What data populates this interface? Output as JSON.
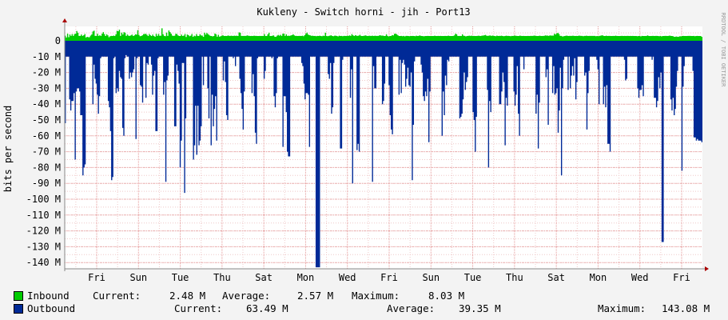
{
  "chart_data": {
    "type": "area",
    "title": "Kukleny - Switch horni - jih - Port13",
    "ylabel": "bits per second",
    "watermark": "RRDTOOL / TOBI OETIKER",
    "ylim": [
      -143080000,
      8030000
    ],
    "y_ticks": [
      {
        "value": 0,
        "label": "0"
      },
      {
        "value": -10000000,
        "label": "-10 M"
      },
      {
        "value": -20000000,
        "label": "-20 M"
      },
      {
        "value": -30000000,
        "label": "-30 M"
      },
      {
        "value": -40000000,
        "label": "-40 M"
      },
      {
        "value": -50000000,
        "label": "-50 M"
      },
      {
        "value": -60000000,
        "label": "-60 M"
      },
      {
        "value": -70000000,
        "label": "-70 M"
      },
      {
        "value": -80000000,
        "label": "-80 M"
      },
      {
        "value": -90000000,
        "label": "-90 M"
      },
      {
        "value": -100000000,
        "label": "-100 M"
      },
      {
        "value": -110000000,
        "label": "-110 M"
      },
      {
        "value": -120000000,
        "label": "-120 M"
      },
      {
        "value": -130000000,
        "label": "-130 M"
      },
      {
        "value": -140000000,
        "label": "-140 M"
      }
    ],
    "x_ticks": [
      "Fri",
      "Sun",
      "Tue",
      "Thu",
      "Sat",
      "Mon",
      "Wed",
      "Fri",
      "Sun",
      "Tue",
      "Thu",
      "Sat",
      "Mon",
      "Wed",
      "Fri"
    ],
    "series": [
      {
        "name": "Inbound",
        "color": "#00cc00",
        "values": [
          3.2,
          2.1,
          4.5,
          2.3,
          4.0,
          3.1,
          4.2,
          3.1,
          4.2,
          4.5,
          6.2,
          5.1,
          3.1,
          3.1,
          4.0,
          3.1,
          3.5,
          4.3,
          2.1,
          2.5,
          2.3,
          2.3,
          3.3,
          4.0,
          5.9,
          6.4,
          3.1,
          3.1,
          4.4,
          3.1,
          3.5,
          3.1,
          4.5,
          5.5,
          4.2,
          3.0,
          4.1,
          3.4,
          2.3,
          2.9,
          3.1,
          3.0,
          3.3,
          3.0,
          4.1,
          6.3,
          6.0,
          7.0,
          3.1,
          5.2,
          4.0,
          5.4,
          5.1,
          3.1,
          4.0,
          3.2,
          3.1,
          3.4,
          3.9,
          3.0,
          3.4,
          4.1,
          3.9,
          6.7,
          3.7,
          2.9,
          3.0,
          3.5,
          4.2,
          4.3,
          4.4,
          3.8,
          3.0,
          4.3,
          3.5,
          3.0,
          3.9,
          3.0,
          2.6,
          4.4,
          3.1,
          4.3,
          3.2,
          3.2,
          7.9,
          4.1,
          3.1,
          2.9,
          5.2,
          3.1,
          6.5,
          5.5,
          4.5,
          3.3,
          3.1,
          3.2,
          4.4,
          4.3,
          3.4,
          3.0,
          3.0,
          3.9,
          3.0,
          3.3,
          4.3,
          2.4,
          4.0,
          3.6,
          2.9,
          3.2,
          4.3,
          2.5,
          3.2,
          2.9,
          4.2,
          3.1,
          3.0,
          4.1,
          3.4,
          3.3,
          2.5,
          5.1,
          3.9,
          5.0,
          4.2,
          3.7,
          3.1,
          3.0,
          2.8,
          3.0,
          4.6,
          4.1,
          2.6,
          3.8,
          2.6,
          2.9,
          3.2,
          3.5,
          3.0,
          3.1,
          3.0,
          3.2,
          3.3,
          3.0,
          3.2,
          3.1,
          3.1,
          3.2,
          3.1,
          3.2,
          3.0,
          5.3,
          5.1,
          3.1,
          3.1,
          3.1,
          3.1,
          3.1,
          3.4,
          3.2,
          3.1,
          3.0,
          3.1,
          3.0,
          3.2,
          3.1,
          3.1,
          3.0,
          3.0,
          3.1,
          3.0,
          3.1,
          3.0,
          4.2,
          3.0,
          3.0,
          4.1,
          5.1,
          3.0,
          3.0,
          3.2,
          3.4,
          2.6,
          2.5,
          3.2,
          3.7,
          3.2,
          3.8,
          3.1,
          4.5,
          4.5,
          3.1,
          4.1,
          3.1,
          3.2,
          3.1,
          3.4,
          3.6,
          4.1,
          3.4,
          3.1,
          3.1,
          3.0,
          3.1,
          3.1,
          3.0,
          3.2,
          2.9,
          3.6,
          4.4,
          5.2,
          4.0,
          3.6,
          3.4,
          3.1,
          3.2,
          3.0,
          3.1,
          2.9,
          3.1,
          3.0,
          3.2,
          3.0,
          2.9,
          3.2,
          3.1,
          5.1,
          3.1,
          2.9,
          3.1,
          3.3,
          3.5,
          3.0,
          2.9,
          3.2,
          3.2,
          3.0,
          2.8,
          3.2,
          3.0,
          3.1,
          2.9,
          3.1,
          3.1,
          3.0,
          3.2,
          3.1,
          3.4,
          3.1,
          4.2,
          3.5,
          3.0,
          3.6,
          3.2,
          3.1,
          3.3,
          3.8,
          3.1,
          3.0,
          3.1,
          3.3,
          3.4,
          3.1,
          3.0,
          3.2,
          3.1,
          3.1,
          3.2,
          3.0,
          3.2,
          3.1,
          3.1,
          3.1,
          3.5,
          3.4,
          3.2,
          3.3,
          3.0,
          3.1,
          4.1,
          3.1,
          2.7,
          3.0,
          3.0,
          3.6,
          3.4,
          4.4,
          4.5,
          4.1,
          3.5,
          3.0,
          3.0,
          3.1,
          2.9,
          3.1,
          2.8,
          3.1,
          3.1,
          3.0,
          2.9,
          3.1,
          3.0,
          3.1,
          3.0,
          2.9,
          3.2,
          3.0,
          3.1,
          3.4,
          3.1,
          3.0,
          2.9,
          2.9,
          3.0,
          3.0,
          3.1,
          3.0,
          3.0,
          3.0,
          3.0,
          3.0,
          3.2,
          3.0,
          3.0,
          3.1,
          3.0,
          3.1,
          3.0,
          3.0,
          3.0,
          3.1,
          3.0,
          3.1,
          3.2,
          3.0,
          3.0,
          3.0,
          3.1,
          3.4,
          4.5,
          4.1,
          3.1,
          3.0,
          3.1,
          3.0,
          4.1,
          3.2,
          3.1,
          2.8,
          3.0,
          3.1,
          3.2,
          3.1,
          3.2,
          3.0,
          3.1,
          3.0,
          3.0,
          3.1,
          3.2,
          3.1,
          3.0,
          3.3,
          3.3,
          3.5,
          3.7,
          3.2,
          3.1,
          3.2,
          3.4,
          3.1,
          3.3,
          3.2,
          3.0,
          2.9,
          3.3,
          3.0,
          3.1,
          3.1,
          3.2,
          3.0,
          2.9,
          3.0,
          3.2,
          3.1,
          3.1,
          3.0,
          2.9,
          3.1,
          3.0,
          3.3,
          3.2,
          3.1,
          3.0,
          3.0,
          3.3,
          3.1,
          3.0,
          3.1,
          3.0,
          3.0,
          3.0,
          3.1,
          3.0,
          3.1,
          3.1,
          3.1,
          3.2,
          3.3,
          3.1,
          3.0,
          3.0,
          3.2,
          3.1,
          3.0,
          3.1,
          3.1,
          3.4,
          3.3,
          3.3,
          3.1,
          3.4,
          3.3,
          3.3,
          3.3,
          4.5,
          4.0,
          4.7,
          5.0,
          4.2,
          3.1,
          3.1,
          2.7,
          2.9,
          3.0,
          3.2,
          3.2,
          3.0,
          3.1,
          3.1,
          3.1,
          3.2,
          3.1,
          3.0,
          3.1,
          3.0,
          3.2,
          3.2,
          3.1,
          3.1,
          2.9,
          3.1,
          3.1,
          3.2,
          3.0,
          3.1,
          3.1,
          3.1,
          3.1,
          3.1,
          3.1,
          2.9,
          3.0,
          2.9,
          3.1,
          3.2,
          3.4,
          3.4,
          3.0,
          3.0,
          3.2,
          3.0,
          3.1,
          3.1,
          3.0,
          3.0,
          3.1,
          3.0,
          3.2,
          3.1,
          3.0,
          3.0,
          3.0,
          3.1,
          3.1,
          3.0,
          3.1,
          3.0,
          3.1,
          3.1,
          3.0,
          3.1,
          3.0,
          3.1,
          3.0,
          3.0,
          3.0,
          2.9,
          3.0,
          3.1,
          2.8,
          3.1,
          3.0,
          3.0,
          3.0,
          3.1,
          3.4,
          3.0,
          3.0,
          3.0,
          3.1,
          3.1,
          3.0,
          3.1,
          3.1,
          3.0,
          2.9,
          3.1,
          2.8,
          3.0,
          3.0,
          3.1,
          3.1,
          3.0,
          3.1,
          3.3,
          3.1,
          3.0,
          2.9,
          2.5,
          2.6,
          2.7,
          2.5,
          2.6,
          2.9,
          2.8,
          3.0,
          3.1,
          3.0,
          3.0,
          3.0,
          3.1,
          3.1,
          3.1,
          3.0,
          3.0,
          3.1,
          2.9,
          3.0,
          3.1,
          3.0,
          3.0,
          3.0,
          2.5
        ]
      },
      {
        "name": "Outbound",
        "color": "#002a97",
        "values": [
          -52,
          -10,
          -10,
          -10,
          -37,
          -44,
          -38,
          -38,
          -33,
          -75,
          -32,
          -30,
          -30,
          -32,
          -47,
          -47,
          -85,
          -80,
          -78,
          -10,
          -10,
          -10,
          -10,
          -10,
          -10,
          -40,
          -15,
          -24,
          -27,
          -34,
          -46,
          -35,
          -11,
          -10,
          -10,
          -10,
          -10,
          -10,
          -10,
          -38,
          -42,
          -57,
          -88,
          -86,
          -11,
          -10,
          -33,
          -30,
          -32,
          -19,
          -23,
          -24,
          -55,
          -60,
          -11,
          -9,
          -10,
          -10,
          -24,
          -20,
          -23,
          -20,
          -18,
          -10,
          -62,
          -11,
          -10,
          -10,
          -28,
          -29,
          -39,
          -10,
          -10,
          -36,
          -14,
          -15,
          -10,
          -10,
          -15,
          -34,
          -22,
          -19,
          -57,
          -57,
          -11,
          -10,
          -10,
          -10,
          -10,
          -34,
          -26,
          -89,
          -25,
          -22,
          -10,
          -10,
          -10,
          -10,
          -10,
          -54,
          -54,
          -15,
          -19,
          -27,
          -80,
          -63,
          -14,
          -14,
          -96,
          -49,
          -10,
          -10,
          -10,
          -10,
          -10,
          -10,
          -75,
          -66,
          -41,
          -72,
          -41,
          -66,
          -63,
          -54,
          -10,
          -28,
          -10,
          -10,
          -10,
          -30,
          -49,
          -10,
          -66,
          -34,
          -54,
          -43,
          -35,
          -63,
          -10,
          -10,
          -10,
          -10,
          -10,
          -25,
          -13,
          -26,
          -47,
          -50,
          -10,
          -10,
          -10,
          -10,
          -11,
          -10,
          -16,
          -10,
          -10,
          -10,
          -24,
          -33,
          -43,
          -56,
          -32,
          -10,
          -10,
          -10,
          -10,
          -10,
          -10,
          -33,
          -21,
          -35,
          -58,
          -65,
          -11,
          -10,
          -10,
          -10,
          -10,
          -10,
          -24,
          -19,
          -10,
          -10,
          -10,
          -10,
          -10,
          -11,
          -10,
          -35,
          -42,
          -33,
          -11,
          -10,
          -10,
          -10,
          -10,
          -67,
          -35,
          -35,
          -45,
          -70,
          -73,
          -73,
          -10,
          -10,
          -10,
          -10,
          -10,
          -10,
          -10,
          -10,
          -10,
          -10,
          -14,
          -16,
          -27,
          -37,
          -33,
          -33,
          -34,
          -67,
          -10,
          -10,
          -10,
          -10,
          -10,
          -143,
          -143,
          -143,
          -143,
          -10,
          -10,
          -10,
          -10,
          -10,
          -10,
          -10,
          -21,
          -24,
          -14,
          -46,
          -42,
          -14,
          -10,
          -10,
          -10,
          -10,
          -10,
          -68,
          -68,
          -12,
          -10,
          -10,
          -10,
          -10,
          -10,
          -10,
          -36,
          -18,
          -90,
          -10,
          -10,
          -10,
          -69,
          -65,
          -70,
          -10,
          -10,
          -10,
          -10,
          -10,
          -10,
          -10,
          -10,
          -10,
          -10,
          -10,
          -89,
          -16,
          -30,
          -30,
          -10,
          -10,
          -10,
          -10,
          -10,
          -40,
          -38,
          -27,
          -10,
          -10,
          -10,
          -28,
          -47,
          -56,
          -59,
          -10,
          -10,
          -10,
          -10,
          -10,
          -34,
          -12,
          -33,
          -14,
          -12,
          -15,
          -29,
          -24,
          -17,
          -28,
          -29,
          -20,
          -88,
          -53,
          -13,
          -10,
          -10,
          -10,
          -10,
          -10,
          -15,
          -20,
          -35,
          -38,
          -32,
          -35,
          -24,
          -64,
          -32,
          -10,
          -10,
          -10,
          -10,
          -10,
          -10,
          -10,
          -10,
          -10,
          -10,
          -60,
          -32,
          -47,
          -22,
          -28,
          -12,
          -13,
          -10,
          -10,
          -10,
          -10,
          -10,
          -10,
          -10,
          -10,
          -10,
          -49,
          -48,
          -46,
          -37,
          -20,
          -31,
          -26,
          -23,
          -10,
          -10,
          -10,
          -10,
          -45,
          -50,
          -70,
          -48,
          -10,
          -10,
          -10,
          -10,
          -10,
          -10,
          -10,
          -10,
          -10,
          -31,
          -80,
          -38,
          -45,
          -10,
          -10,
          -10,
          -10,
          -10,
          -10,
          -10,
          -40,
          -40,
          -32,
          -20,
          -26,
          -66,
          -36,
          -41,
          -10,
          -10,
          -10,
          -10,
          -10,
          -32,
          -41,
          -34,
          -16,
          -46,
          -60,
          -10,
          -10,
          -10,
          -18,
          -10,
          -10,
          -10,
          -10,
          -10,
          -10,
          -10,
          -10,
          -10,
          -10,
          -46,
          -34,
          -68,
          -39,
          -10,
          -10,
          -10,
          -10,
          -10,
          -23,
          -18,
          -53,
          -10,
          -10,
          -10,
          -33,
          -16,
          -34,
          -33,
          -30,
          -58,
          -44,
          -17,
          -85,
          -30,
          -12,
          -10,
          -10,
          -10,
          -31,
          -10,
          -30,
          -22,
          -16,
          -22,
          -11,
          -37,
          -26,
          -10,
          -10,
          -10,
          -10,
          -10,
          -10,
          -22,
          -20,
          -56,
          -33,
          -19,
          -10,
          -10,
          -10,
          -10,
          -10,
          -10,
          -12,
          -18,
          -40,
          -10,
          -10,
          -10,
          -40,
          -29,
          -42,
          -28,
          -65,
          -65,
          -70,
          -10,
          -10,
          -10,
          -10,
          -10,
          -10,
          -10,
          -10,
          -10,
          -10,
          -10,
          -10,
          -12,
          -25,
          -24,
          -10,
          -10,
          -10,
          -10,
          -10,
          -10,
          -10,
          -10,
          -10,
          -30,
          -36,
          -31,
          -31,
          -28,
          -35,
          -10,
          -10,
          -10,
          -10,
          -10,
          -10,
          -10,
          -12,
          -10,
          -36,
          -36,
          -42,
          -38,
          -23,
          -30,
          -20,
          -127,
          -127,
          -10,
          -10,
          -10,
          -10,
          -10,
          -10,
          -37,
          -44,
          -36,
          -47,
          -43,
          -29,
          -19,
          -10,
          -10,
          -10,
          -82,
          -29,
          -16,
          -10,
          -10,
          -10,
          -10,
          -10,
          -10,
          -10,
          -19,
          -61,
          -61,
          -63,
          -62,
          -63,
          -63,
          -63,
          -64
        ]
      }
    ]
  },
  "legend": {
    "inbound": {
      "name": "Inbound",
      "color": "#00cc00",
      "current_label": "Current:",
      "current_value": "2.48 M",
      "average_label": "Average:",
      "average_value": "2.57 M",
      "maximum_label": "Maximum:",
      "maximum_value": "8.03 M"
    },
    "outbound": {
      "name": "Outbound",
      "color": "#002a97",
      "current_label": "Current:",
      "current_value": "63.49 M",
      "average_label": "Average:",
      "average_value": "39.35 M",
      "maximum_label": "Maximum:",
      "maximum_value": "143.08 M"
    }
  }
}
